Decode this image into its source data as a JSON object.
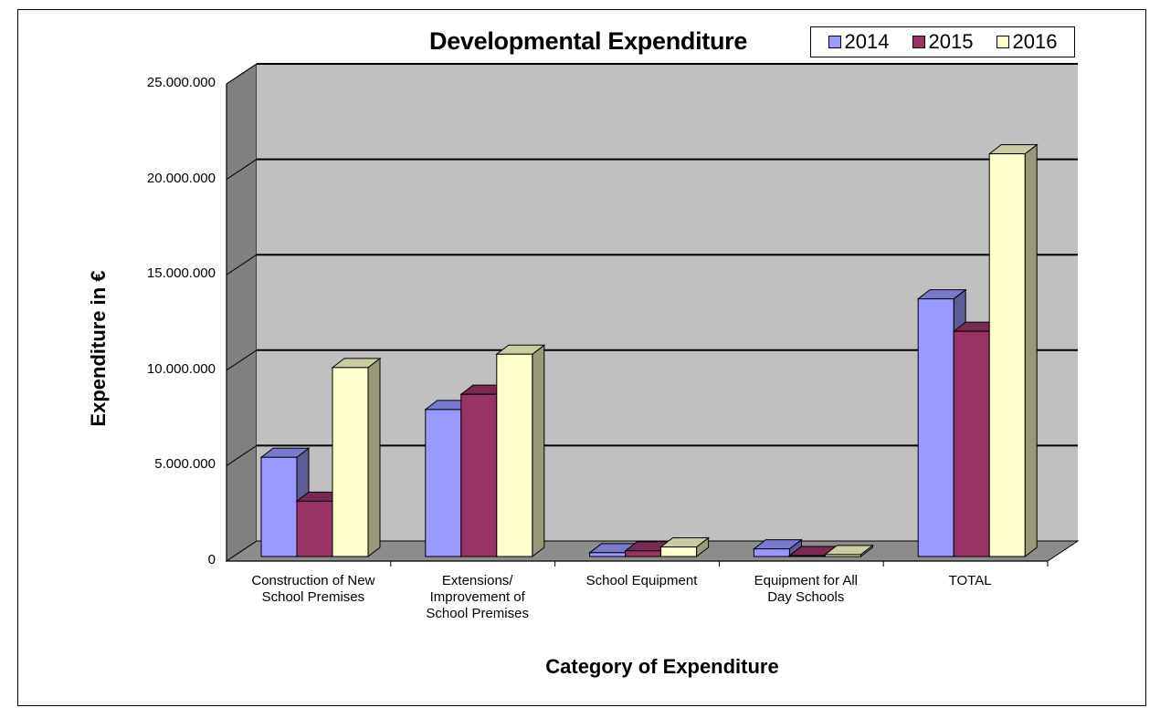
{
  "chart_data": {
    "type": "bar",
    "title": "Developmental Expenditure",
    "xlabel": "Category of Expenditure",
    "ylabel": "Expenditure in €",
    "categories": [
      "Construction of New\nSchool Premises",
      "Extensions/\nImprovement of\nSchool Premises",
      "School Equipment",
      "Equipment for All\nDay Schools",
      "TOTAL"
    ],
    "series": [
      {
        "name": "2014",
        "color": "#9999ff",
        "values": [
          5200000,
          7700000,
          200000,
          400000,
          13500000
        ]
      },
      {
        "name": "2015",
        "color": "#993366",
        "values": [
          2900000,
          8500000,
          300000,
          50000,
          11800000
        ]
      },
      {
        "name": "2016",
        "color": "#ffffcc",
        "values": [
          9900000,
          10600000,
          500000,
          100000,
          21100000
        ]
      }
    ],
    "ylim": [
      0,
      25000000
    ],
    "yticks": [
      "0",
      "5.000.000",
      "10.000.000",
      "15.000.000",
      "20.000.000",
      "25.000.000"
    ],
    "ytick_values": [
      0,
      5000000,
      10000000,
      15000000,
      20000000,
      25000000
    ],
    "grid": true,
    "legend_position": "top-right",
    "three_d": true
  }
}
